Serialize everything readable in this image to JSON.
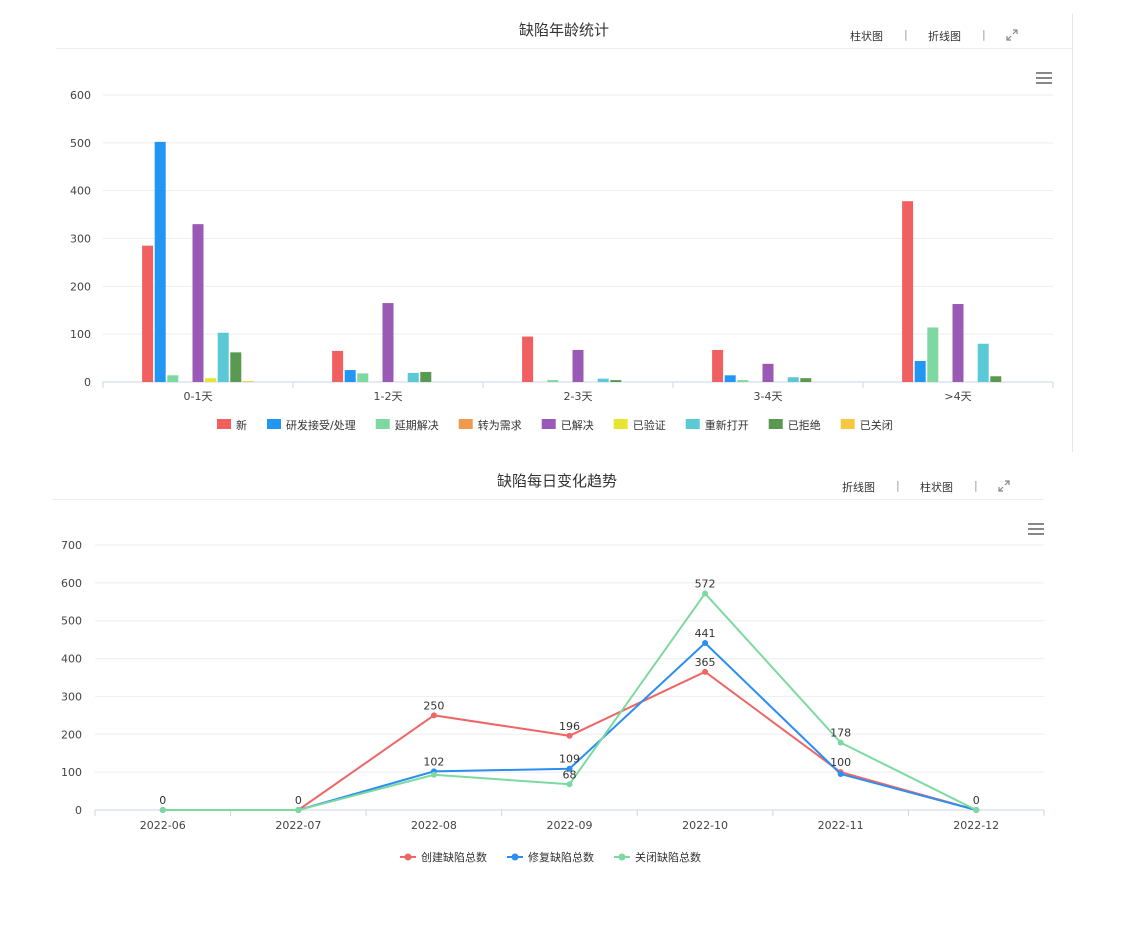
{
  "panel1": {
    "title": "缺陷年龄统计",
    "controls": [
      "柱状图",
      "折线图"
    ]
  },
  "panel2": {
    "title": "缺陷每日变化趋势",
    "controls": [
      "折线图",
      "柱状图"
    ]
  },
  "chart_data": [
    {
      "type": "bar",
      "title": "缺陷年龄统计",
      "categories": [
        "0-1天",
        "1-2天",
        "2-3天",
        "3-4天",
        ">4天"
      ],
      "ylim": [
        0,
        600
      ],
      "yticks": [
        0,
        100,
        200,
        300,
        400,
        500,
        600
      ],
      "grid": true,
      "legend_position": "bottom",
      "series": [
        {
          "name": "新",
          "color": "#f06060",
          "values": [
            285,
            65,
            95,
            67,
            378
          ]
        },
        {
          "name": "研发接受/处理",
          "color": "#2196f3",
          "values": [
            502,
            25,
            0,
            14,
            44
          ]
        },
        {
          "name": "延期解决",
          "color": "#7ed9a0",
          "values": [
            14,
            18,
            4,
            4,
            114
          ]
        },
        {
          "name": "转为需求",
          "color": "#f09a50",
          "values": [
            0,
            0,
            0,
            0,
            0
          ]
        },
        {
          "name": "已解决",
          "color": "#9b59b6",
          "values": [
            330,
            165,
            67,
            38,
            163
          ]
        },
        {
          "name": "已验证",
          "color": "#e6e62e",
          "values": [
            8,
            0,
            0,
            0,
            0
          ]
        },
        {
          "name": "重新打开",
          "color": "#5bc8d6",
          "values": [
            103,
            19,
            7,
            10,
            80
          ]
        },
        {
          "name": "已拒绝",
          "color": "#5a9a50",
          "values": [
            62,
            21,
            4,
            8,
            12
          ]
        },
        {
          "name": "已关闭",
          "color": "#f5c842",
          "values": [
            2,
            0,
            0,
            0,
            0
          ]
        }
      ]
    },
    {
      "type": "line",
      "title": "缺陷每日变化趋势",
      "x": [
        "2022-06",
        "2022-07",
        "2022-08",
        "2022-09",
        "2022-10",
        "2022-11",
        "2022-12"
      ],
      "ylim": [
        0,
        700
      ],
      "yticks": [
        0,
        100,
        200,
        300,
        400,
        500,
        600,
        700
      ],
      "grid": true,
      "legend_position": "bottom",
      "series": [
        {
          "name": "创建缺陷总数",
          "color": "#ee6666",
          "values": [
            0,
            0,
            250,
            196,
            365,
            100,
            0
          ]
        },
        {
          "name": "修复缺陷总数",
          "color": "#2b8ef0",
          "values": [
            0,
            0,
            102,
            109,
            441,
            95,
            0
          ]
        },
        {
          "name": "关闭缺陷总数",
          "color": "#7cd9a0",
          "values": [
            0,
            0,
            93,
            68,
            572,
            178,
            0
          ]
        }
      ],
      "data_labels": [
        {
          "x": "2022-06",
          "text": "0"
        },
        {
          "x": "2022-07",
          "text": "0"
        },
        {
          "x": "2022-08",
          "text": "250",
          "series": 0
        },
        {
          "x": "2022-08",
          "text": "102",
          "series": 1
        },
        {
          "x": "2022-09",
          "text": "196",
          "series": 0
        },
        {
          "x": "2022-09",
          "text": "109",
          "series": 1
        },
        {
          "x": "2022-09",
          "text": "68",
          "series": 2
        },
        {
          "x": "2022-10",
          "text": "572",
          "series": 2
        },
        {
          "x": "2022-10",
          "text": "441",
          "series": 1
        },
        {
          "x": "2022-10",
          "text": "365",
          "series": 0
        },
        {
          "x": "2022-11",
          "text": "178",
          "series": 2
        },
        {
          "x": "2022-11",
          "text": "100",
          "series": 0
        },
        {
          "x": "2022-12",
          "text": "0"
        }
      ]
    }
  ]
}
